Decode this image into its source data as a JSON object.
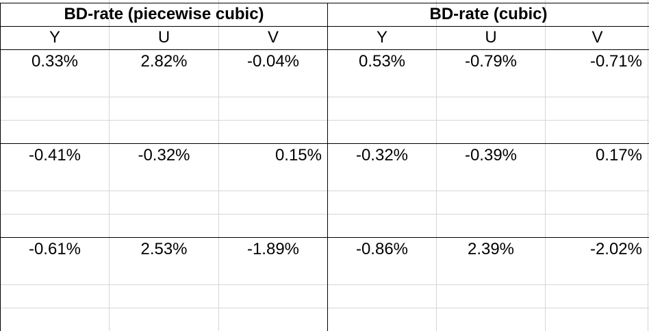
{
  "headers": {
    "group1": "BD-rate (piecewise cubic)",
    "group2": "BD-rate (cubic)"
  },
  "subheaders": [
    "Y",
    "U",
    "V",
    "Y",
    "U",
    "V"
  ],
  "rows": [
    [
      "0.33%",
      "2.82%",
      "-0.04%",
      "0.53%",
      "-0.79%",
      "-0.71%"
    ],
    [
      "-0.41%",
      "-0.32%",
      "0.15%",
      "-0.32%",
      "-0.39%",
      "0.17%"
    ],
    [
      "-0.61%",
      "2.53%",
      "-1.89%",
      "-0.86%",
      "2.39%",
      "-2.02%"
    ]
  ],
  "colors": {
    "grid": "#d6d6d6",
    "border": "#000000",
    "text": "#000000"
  }
}
